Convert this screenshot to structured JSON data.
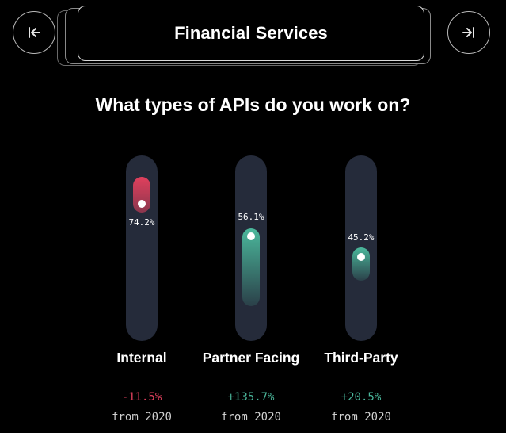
{
  "header": {
    "title": "Financial Services",
    "prev_icon": "skip-back-icon",
    "next_icon": "skip-forward-icon"
  },
  "question": "What types of APIs do you work on?",
  "colors": {
    "negative": "#e0405d",
    "positive": "#4bb89c",
    "track": "#252b3a"
  },
  "chart_data": {
    "type": "bar",
    "categories": [
      "Internal",
      "Partner Facing",
      "Third-Party"
    ],
    "values": [
      74.2,
      56.1,
      45.2
    ],
    "value_labels": [
      "74.2%",
      "56.1%",
      "45.2%"
    ],
    "change": [
      "-11.5%",
      "+135.7%",
      "+20.5%"
    ],
    "change_direction": [
      "negative",
      "positive",
      "positive"
    ],
    "since_label": "from 2020"
  }
}
